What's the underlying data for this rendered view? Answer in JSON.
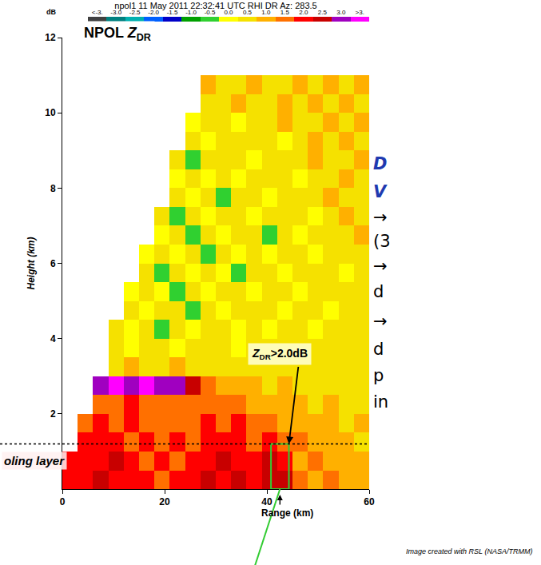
{
  "chart_data": {
    "type": "heatmap",
    "title": "npol1 11 May 2011 22:32:41 UTC RHI DR Az: 283.5",
    "x_label": "Range (km)",
    "y_label": "Height (km)",
    "xlim": [
      0,
      60
    ],
    "xticks": [
      0,
      20,
      40,
      60
    ],
    "ylim": [
      0,
      12
    ],
    "yticks": [
      2,
      4,
      6,
      8,
      10,
      12
    ],
    "grid": false,
    "x": [
      1.5,
      4.5,
      7.5,
      10.5,
      13.5,
      16.5,
      19.5,
      22.5,
      25.5,
      28.5,
      31.5,
      34.5,
      37.5,
      40.5,
      43.5,
      46.5,
      49.5,
      52.5,
      55.5,
      58.5
    ],
    "y": [
      0.25,
      0.75,
      1.25,
      1.75,
      2.25,
      2.75,
      3.25,
      3.75,
      4.25,
      4.75,
      5.25,
      5.75,
      6.25,
      6.75,
      7.25,
      7.75,
      8.25,
      8.75,
      9.25,
      9.75,
      10.25,
      10.75
    ],
    "z": [
      [
        2.0,
        2.0,
        2.5,
        2.0,
        2.0,
        2.0,
        1.5,
        2.0,
        2.0,
        2.5,
        2.0,
        2.5,
        2.0,
        2.5,
        2.5,
        1.5,
        1.0,
        1.5,
        1.0,
        1.0
      ],
      [
        2.0,
        2.0,
        2.0,
        2.5,
        2.0,
        1.5,
        2.0,
        1.5,
        2.0,
        2.0,
        2.5,
        2.0,
        2.0,
        2.5,
        2.0,
        1.0,
        1.5,
        1.0,
        1.0,
        1.0
      ],
      [
        null,
        2.0,
        2.0,
        2.0,
        1.5,
        2.0,
        1.5,
        2.0,
        1.5,
        2.0,
        2.0,
        2.0,
        1.5,
        2.0,
        1.5,
        1.5,
        1.0,
        1.0,
        1.0,
        0.5
      ],
      [
        null,
        1.5,
        2.0,
        1.5,
        2.0,
        1.5,
        1.5,
        1.5,
        1.5,
        2.0,
        1.5,
        2.0,
        1.5,
        1.5,
        1.0,
        1.0,
        1.0,
        1.0,
        0.5,
        1.0
      ],
      [
        null,
        null,
        1.5,
        1.5,
        2.0,
        1.5,
        1.5,
        1.5,
        1.5,
        1.5,
        1.5,
        1.5,
        1.0,
        1.0,
        1.0,
        1.0,
        0.5,
        1.0,
        0.5,
        0.5
      ],
      [
        null,
        null,
        3.0,
        3.5,
        3.0,
        3.5,
        3.0,
        3.0,
        2.5,
        1.5,
        1.0,
        1.0,
        1.0,
        0.5,
        1.0,
        0.5,
        0.5,
        0.5,
        0.5,
        0.5
      ],
      [
        null,
        null,
        null,
        0.5,
        1.0,
        0.5,
        0.5,
        1.0,
        0.5,
        0.5,
        0.5,
        0.5,
        0.5,
        0.5,
        0.5,
        0.5,
        0.5,
        0.5,
        0.5,
        0.5
      ],
      [
        null,
        null,
        null,
        0.5,
        0.0,
        0.5,
        0.5,
        0.0,
        0.5,
        0.5,
        0.5,
        0.0,
        0.5,
        0.5,
        0.5,
        0.5,
        0.5,
        0.5,
        0.5,
        0.5
      ],
      [
        null,
        null,
        null,
        0.5,
        0.0,
        0.5,
        -0.5,
        0.5,
        0.0,
        0.5,
        0.5,
        0.0,
        0.5,
        0.0,
        0.5,
        0.5,
        0.0,
        0.5,
        0.5,
        0.5
      ],
      [
        null,
        null,
        null,
        null,
        0.5,
        0.0,
        0.5,
        0.5,
        -0.5,
        0.5,
        0.0,
        0.5,
        0.5,
        0.5,
        0.0,
        0.5,
        0.5,
        0.0,
        0.5,
        0.5
      ],
      [
        null,
        null,
        null,
        null,
        0.0,
        0.5,
        0.0,
        -0.5,
        0.5,
        0.0,
        0.5,
        0.5,
        0.0,
        0.5,
        0.5,
        0.0,
        0.5,
        0.5,
        0.5,
        0.5
      ],
      [
        null,
        null,
        null,
        null,
        null,
        0.5,
        -0.5,
        0.5,
        0.0,
        0.5,
        0.0,
        -0.5,
        0.5,
        0.5,
        0.0,
        0.5,
        0.5,
        0.5,
        0.0,
        0.5
      ],
      [
        null,
        null,
        null,
        null,
        null,
        0.0,
        0.5,
        0.0,
        0.5,
        -0.5,
        0.5,
        0.0,
        0.5,
        0.0,
        0.5,
        0.5,
        0.0,
        0.5,
        0.5,
        0.5
      ],
      [
        null,
        null,
        null,
        null,
        null,
        null,
        0.0,
        0.5,
        -0.5,
        0.5,
        0.0,
        0.5,
        0.5,
        -0.5,
        0.5,
        0.0,
        0.5,
        0.5,
        0.5,
        1.0
      ],
      [
        null,
        null,
        null,
        null,
        null,
        null,
        0.5,
        -0.5,
        0.5,
        0.0,
        0.5,
        0.5,
        0.0,
        0.5,
        0.5,
        0.5,
        0.0,
        0.5,
        1.0,
        0.5
      ],
      [
        null,
        null,
        null,
        null,
        null,
        null,
        null,
        0.5,
        0.0,
        0.5,
        -0.5,
        0.5,
        0.5,
        0.0,
        0.5,
        0.5,
        0.5,
        1.0,
        0.5,
        0.5
      ],
      [
        null,
        null,
        null,
        null,
        null,
        null,
        null,
        0.0,
        0.5,
        0.0,
        0.5,
        0.0,
        0.5,
        0.5,
        0.5,
        0.0,
        0.5,
        0.5,
        1.0,
        0.5
      ],
      [
        null,
        null,
        null,
        null,
        null,
        null,
        null,
        0.5,
        -0.5,
        0.5,
        0.5,
        0.5,
        0.0,
        0.5,
        0.5,
        0.5,
        1.0,
        0.5,
        0.5,
        1.0
      ],
      [
        null,
        null,
        null,
        null,
        null,
        null,
        null,
        null,
        0.5,
        0.0,
        0.5,
        0.5,
        0.5,
        0.5,
        0.0,
        0.5,
        1.0,
        0.5,
        1.0,
        0.5
      ],
      [
        null,
        null,
        null,
        null,
        null,
        null,
        null,
        null,
        0.0,
        0.5,
        0.5,
        0.0,
        0.5,
        0.5,
        1.0,
        0.5,
        0.5,
        1.0,
        0.5,
        1.0
      ],
      [
        null,
        null,
        null,
        null,
        null,
        null,
        null,
        null,
        null,
        0.5,
        0.5,
        1.0,
        0.5,
        0.5,
        1.0,
        0.5,
        1.0,
        0.5,
        1.0,
        0.5
      ],
      [
        null,
        null,
        null,
        null,
        null,
        null,
        null,
        null,
        null,
        1.0,
        0.5,
        0.5,
        1.0,
        0.5,
        0.5,
        1.0,
        0.5,
        1.0,
        0.5,
        1.0
      ]
    ],
    "colorbar": {
      "title": "dB",
      "range": [
        -3.75,
        3.75
      ],
      "ticks": [
        {
          "value": -3.5,
          "label": "<-3."
        },
        {
          "value": -3,
          "label": "-3.0"
        },
        -2.5,
        {
          "value": -2,
          "label": "-2.0"
        },
        -1.5,
        {
          "value": -1,
          "label": "-1.0"
        },
        -0.5,
        {
          "value": 0,
          "label": "0.0"
        },
        0.5,
        {
          "value": 1,
          "label": "1.0"
        },
        1.5,
        {
          "value": 2,
          "label": "2.0"
        },
        2.5,
        {
          "value": 3,
          "label": "3.0"
        },
        {
          "value": 3.5,
          "label": ">3."
        }
      ],
      "colors": [
        "#404040",
        "#008080",
        "#00b0b0",
        "#0060ff",
        "#0000c8",
        "#00a000",
        "#30d030",
        "#ffff00",
        "#f5e100",
        "#ffb000",
        "#ff7000",
        "#ff0000",
        "#c80000",
        "#a000c0",
        "#ff00ff"
      ]
    },
    "panel_label": {
      "prefix": "NPOL",
      "symbol": "Z",
      "subscript": "DR"
    },
    "threshold_label": {
      "symbol": "Z",
      "subscript": "DR",
      "suffix": ">2.0dB"
    },
    "layer_label": "oling layer",
    "layer_height": 1.2,
    "highlight": {
      "x": [
        40.8,
        44.3
      ],
      "y": [
        0,
        1.2
      ],
      "color": "#33cc33"
    },
    "credit": "Image created with RSL (NASA/TRMM)",
    "side_text": [
      {
        "text": "D",
        "color": "#1f3ab0"
      },
      {
        "text": "V",
        "color": "#1f3ab0"
      },
      {
        "text": "→"
      },
      {
        "text": "(3"
      },
      {
        "text": "→"
      },
      {
        "text": "d"
      },
      {
        "text": "→"
      },
      {
        "text": "d"
      },
      {
        "text": "p"
      },
      {
        "text": "in"
      }
    ]
  }
}
